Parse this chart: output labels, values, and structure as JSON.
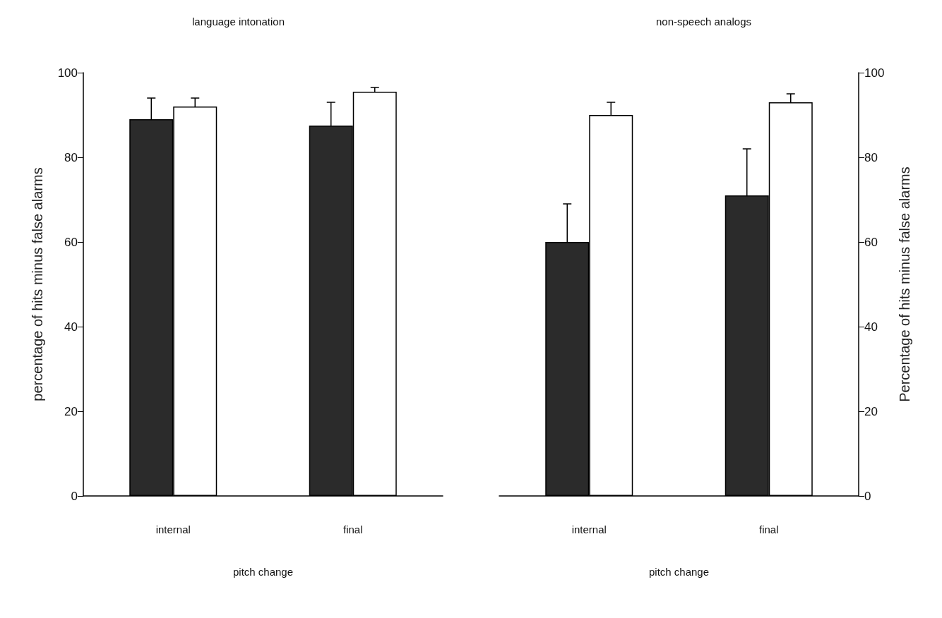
{
  "chart_data": [
    {
      "type": "bar",
      "title": "language intonation",
      "xlabel": "pitch change",
      "ylabel": "percentage of hits minus false alarms",
      "categories": [
        "internal",
        "final"
      ],
      "series": [
        {
          "color": "#2b2b2b",
          "values": [
            89,
            87.5
          ],
          "errors": [
            [
              89,
              94
            ],
            [
              87.5,
              93
            ]
          ]
        },
        {
          "color": "#ffffff",
          "values": [
            92,
            95.5
          ],
          "errors": [
            [
              92,
              94
            ],
            [
              95.5,
              96.5
            ]
          ]
        }
      ],
      "ylim": [
        0,
        100
      ],
      "yticks": [
        0,
        20,
        40,
        60,
        80,
        100
      ],
      "grid": false
    },
    {
      "type": "bar",
      "title": "non-speech analogs",
      "xlabel": "pitch change",
      "y2label": "Percentage of hits minus false alarms",
      "categories": [
        "internal",
        "final"
      ],
      "series": [
        {
          "color": "#2b2b2b",
          "axis": "y2",
          "values": [
            60,
            71
          ],
          "errors": [
            [
              60,
              69
            ],
            [
              71,
              82
            ]
          ]
        },
        {
          "color": "#ffffff",
          "axis": "y2",
          "values": [
            90,
            93
          ],
          "errors": [
            [
              90,
              93
            ],
            [
              93,
              95
            ]
          ]
        }
      ],
      "y2lim": [
        0,
        100
      ],
      "y2ticks": [
        0,
        20,
        40,
        60,
        80,
        100
      ],
      "grid": false
    }
  ]
}
